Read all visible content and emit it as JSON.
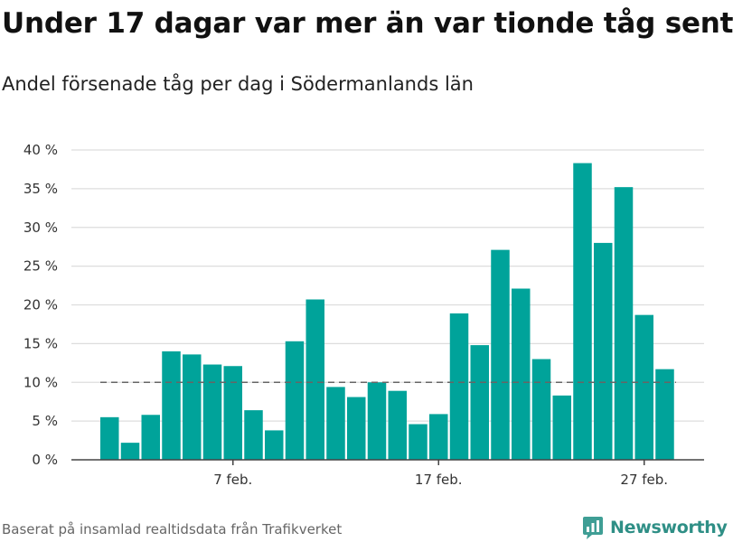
{
  "header": {
    "title": "Under 17 dagar var mer än var tionde tåg sent",
    "subtitle": "Andel försenade tåg per dag i Södermanlands län"
  },
  "footer": {
    "source": "Baserat på insamlad realtidsdata från Trafikverket",
    "brand": "Newsworthy"
  },
  "colors": {
    "bar": "#00a39a",
    "grid": "#dddddd",
    "reference_line": "#666666",
    "brand": "#2f8f86"
  },
  "chart_data": {
    "type": "bar",
    "x": [
      "1 feb.",
      "2 feb.",
      "3 feb.",
      "4 feb.",
      "5 feb.",
      "6 feb.",
      "7 feb.",
      "8 feb.",
      "9 feb.",
      "10 feb.",
      "11 feb.",
      "12 feb.",
      "13 feb.",
      "14 feb.",
      "15 feb.",
      "16 feb.",
      "17 feb.",
      "18 feb.",
      "19 feb.",
      "20 feb.",
      "21 feb.",
      "22 feb.",
      "23 feb.",
      "24 feb.",
      "25 feb.",
      "26 feb.",
      "27 feb.",
      "28 feb."
    ],
    "values": [
      5.5,
      2.2,
      5.8,
      14.0,
      13.6,
      12.3,
      12.1,
      6.4,
      3.8,
      15.3,
      20.7,
      9.4,
      8.1,
      10.0,
      8.9,
      4.6,
      5.9,
      18.9,
      14.8,
      27.1,
      22.1,
      13.0,
      8.3,
      38.3,
      28.0,
      35.2,
      18.7,
      11.7
    ],
    "x_ticks": [
      {
        "index": 6,
        "label": "7 feb."
      },
      {
        "index": 16,
        "label": "17 feb."
      },
      {
        "index": 26,
        "label": "27 feb."
      }
    ],
    "y_ticks": [
      {
        "value": 0,
        "label": "0 %"
      },
      {
        "value": 5,
        "label": "5 %"
      },
      {
        "value": 10,
        "label": "10 %"
      },
      {
        "value": 15,
        "label": "15 %"
      },
      {
        "value": 20,
        "label": "20 %"
      },
      {
        "value": 25,
        "label": "25 %"
      },
      {
        "value": 30,
        "label": "30 %"
      },
      {
        "value": 35,
        "label": "35 %"
      },
      {
        "value": 40,
        "label": "40 %"
      }
    ],
    "ylim": [
      0,
      40
    ],
    "reference_line": {
      "value": 10,
      "style": "dashed"
    },
    "grid": true,
    "xlabel": "",
    "ylabel": ""
  }
}
